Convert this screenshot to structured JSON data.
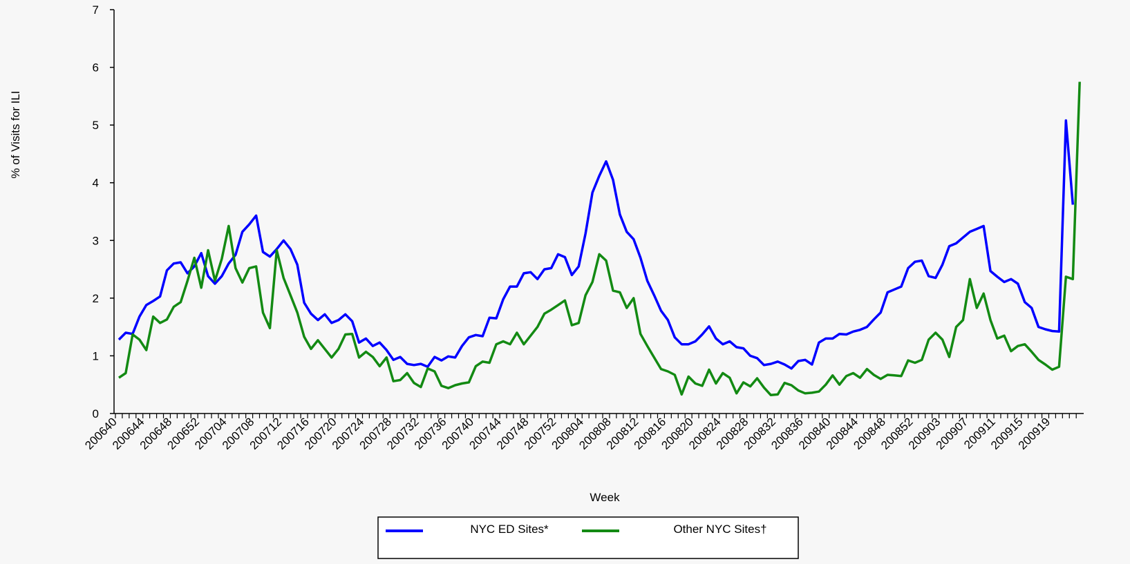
{
  "chart_data": {
    "type": "line",
    "y_label": "% of Visits for ILI",
    "x_label": "Week",
    "legend": "bottom",
    "ylim": [
      0,
      7
    ],
    "yticks": [
      0,
      1,
      2,
      3,
      4,
      5,
      6,
      7
    ],
    "categories": [
      "200640",
      null,
      null,
      null,
      "200644",
      null,
      null,
      null,
      "200648",
      null,
      null,
      null,
      "200652",
      null,
      null,
      null,
      "200704",
      null,
      null,
      null,
      "200708",
      null,
      null,
      null,
      "200712",
      null,
      null,
      null,
      "200716",
      null,
      null,
      null,
      "200720",
      null,
      null,
      null,
      "200724",
      null,
      null,
      null,
      "200728",
      null,
      null,
      null,
      "200732",
      null,
      null,
      null,
      "200736",
      null,
      null,
      null,
      "200740",
      null,
      null,
      null,
      "200744",
      null,
      null,
      null,
      "200748",
      null,
      null,
      null,
      "200752",
      null,
      null,
      null,
      "200804",
      null,
      null,
      null,
      "200808",
      null,
      null,
      null,
      "200812",
      null,
      null,
      null,
      "200816",
      null,
      null,
      null,
      "200820",
      null,
      null,
      null,
      "200824",
      null,
      null,
      null,
      "200828",
      null,
      null,
      null,
      "200832",
      null,
      null,
      null,
      "200836",
      null,
      null,
      null,
      "200840",
      null,
      null,
      null,
      "200844",
      null,
      null,
      null,
      "200848",
      null,
      null,
      null,
      "200852",
      null,
      null,
      null,
      "200903",
      null,
      null,
      null,
      "200907",
      null,
      null,
      null,
      "200911",
      null,
      null,
      null,
      "200915",
      null,
      null,
      null,
      "200919",
      null,
      null,
      null,
      null
    ],
    "series": [
      {
        "name": "NYC ED Sites*",
        "color": "#0000ff",
        "values": [
          1.28,
          1.4,
          1.38,
          1.68,
          1.88,
          1.95,
          2.03,
          2.48,
          2.6,
          2.62,
          2.43,
          2.55,
          2.78,
          2.38,
          2.25,
          2.38,
          2.6,
          2.75,
          3.15,
          3.28,
          3.43,
          2.8,
          2.72,
          2.85,
          3.0,
          2.85,
          2.58,
          1.92,
          1.73,
          1.62,
          1.72,
          1.57,
          1.62,
          1.72,
          1.6,
          1.23,
          1.3,
          1.17,
          1.23,
          1.1,
          0.93,
          0.98,
          0.86,
          0.84,
          0.86,
          0.81,
          0.98,
          0.92,
          0.99,
          0.97,
          1.17,
          1.32,
          1.36,
          1.34,
          1.66,
          1.65,
          1.98,
          2.2,
          2.2,
          2.43,
          2.45,
          2.33,
          2.5,
          2.52,
          2.76,
          2.71,
          2.4,
          2.55,
          3.12,
          3.83,
          4.12,
          4.37,
          4.05,
          3.45,
          3.15,
          3.02,
          2.7,
          2.3,
          2.05,
          1.78,
          1.62,
          1.32,
          1.2,
          1.2,
          1.25,
          1.37,
          1.51,
          1.3,
          1.2,
          1.25,
          1.15,
          1.13,
          1.0,
          0.96,
          0.84,
          0.86,
          0.9,
          0.85,
          0.78,
          0.91,
          0.93,
          0.85,
          1.23,
          1.3,
          1.3,
          1.38,
          1.37,
          1.42,
          1.45,
          1.5,
          1.63,
          1.75,
          2.1,
          2.15,
          2.2,
          2.52,
          2.63,
          2.65,
          2.38,
          2.35,
          2.58,
          2.9,
          2.95,
          3.05,
          3.15,
          3.2,
          3.25,
          2.47,
          2.37,
          2.28,
          2.33,
          2.25,
          1.93,
          1.83,
          1.5,
          1.46,
          1.43,
          1.42,
          5.08,
          3.62,
          null
        ]
      },
      {
        "name": "Other NYC Sites†",
        "color": "#138a13",
        "values": [
          0.62,
          0.7,
          1.37,
          1.28,
          1.1,
          1.68,
          1.57,
          1.63,
          1.85,
          1.93,
          2.3,
          2.7,
          2.18,
          2.83,
          2.3,
          2.68,
          3.25,
          2.52,
          2.27,
          2.52,
          2.55,
          1.75,
          1.48,
          2.83,
          2.35,
          2.05,
          1.75,
          1.33,
          1.12,
          1.27,
          1.12,
          0.97,
          1.12,
          1.37,
          1.38,
          0.97,
          1.07,
          0.98,
          0.82,
          0.97,
          0.56,
          0.58,
          0.7,
          0.53,
          0.46,
          0.78,
          0.73,
          0.48,
          0.44,
          0.49,
          0.52,
          0.54,
          0.82,
          0.9,
          0.88,
          1.2,
          1.25,
          1.2,
          1.4,
          1.2,
          1.35,
          1.5,
          1.73,
          1.8,
          1.88,
          1.96,
          1.53,
          1.57,
          2.05,
          2.28,
          2.76,
          2.65,
          2.13,
          2.1,
          1.83,
          2.0,
          1.38,
          1.17,
          0.97,
          0.77,
          0.73,
          0.67,
          0.33,
          0.64,
          0.52,
          0.48,
          0.76,
          0.52,
          0.7,
          0.62,
          0.35,
          0.54,
          0.47,
          0.61,
          0.45,
          0.32,
          0.33,
          0.53,
          0.49,
          0.4,
          0.35,
          0.36,
          0.38,
          0.5,
          0.66,
          0.5,
          0.65,
          0.7,
          0.62,
          0.77,
          0.67,
          0.6,
          0.67,
          0.66,
          0.65,
          0.92,
          0.88,
          0.93,
          1.28,
          1.4,
          1.28,
          0.98,
          1.5,
          1.62,
          2.33,
          1.83,
          2.08,
          1.62,
          1.3,
          1.35,
          1.08,
          1.17,
          1.2,
          1.07,
          0.93,
          0.85,
          0.76,
          0.81,
          2.37,
          2.33,
          5.75
        ]
      }
    ]
  }
}
